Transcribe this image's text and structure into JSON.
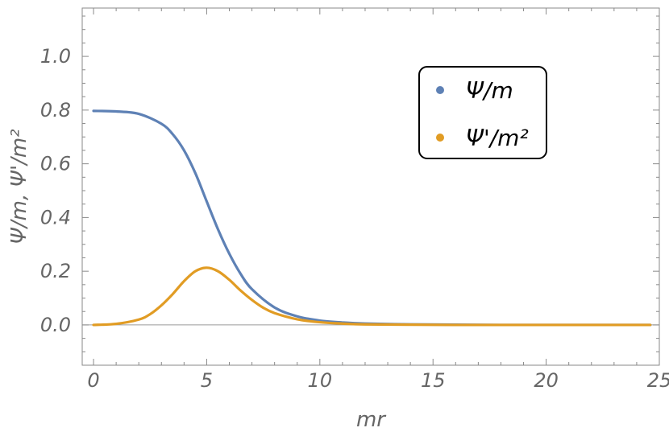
{
  "chart_data": {
    "type": "line",
    "xlabel": "mr",
    "ylabel": "Ψ/m, Ψ'/m²",
    "xlim": [
      -0.5,
      25
    ],
    "ylim": [
      -0.15,
      1.18
    ],
    "xticks": [
      0,
      5,
      10,
      15,
      20,
      25
    ],
    "xtick_labels": [
      "0",
      "5",
      "10",
      "15",
      "20",
      "25"
    ],
    "yticks": [
      0.0,
      0.2,
      0.4,
      0.6,
      0.8,
      1.0
    ],
    "ytick_labels": [
      "0.0",
      "0.2",
      "0.4",
      "0.6",
      "0.8",
      "1.0"
    ],
    "grid": false,
    "legend_position": "top-right",
    "series": [
      {
        "name": "Ψ/m",
        "color": "#5e81b5",
        "x": [
          0,
          1,
          2,
          3,
          3.5,
          4,
          4.5,
          5,
          5.5,
          6,
          6.5,
          7,
          8,
          9,
          10,
          11,
          12,
          14,
          16,
          18,
          20,
          22,
          24.6
        ],
        "y": [
          0.797,
          0.795,
          0.786,
          0.749,
          0.71,
          0.65,
          0.565,
          0.46,
          0.356,
          0.265,
          0.19,
          0.133,
          0.065,
          0.032,
          0.016,
          0.009,
          0.005,
          0.002,
          0.001,
          0,
          0,
          0,
          0
        ]
      },
      {
        "name": "Ψ'/m²",
        "color": "#e19c24",
        "x": [
          0,
          1,
          2,
          2.5,
          3,
          3.5,
          4,
          4.5,
          5,
          5.5,
          6,
          6.5,
          7,
          7.5,
          8,
          9,
          10,
          11,
          12,
          14,
          16,
          18,
          20,
          22,
          24.6
        ],
        "y": [
          0,
          0.004,
          0.02,
          0.04,
          0.073,
          0.115,
          0.163,
          0.2,
          0.213,
          0.2,
          0.168,
          0.128,
          0.093,
          0.064,
          0.044,
          0.021,
          0.01,
          0.005,
          0.002,
          0.001,
          0,
          0,
          0,
          0,
          0
        ]
      }
    ]
  }
}
